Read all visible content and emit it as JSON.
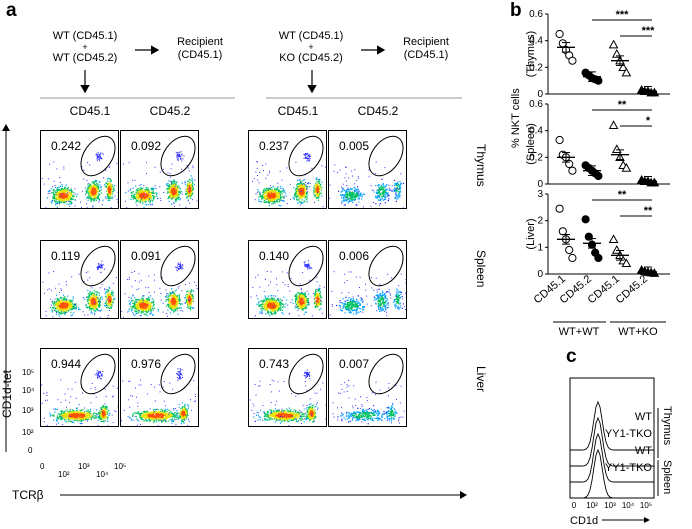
{
  "figure": {
    "panel_a": "a",
    "panel_b": "b",
    "panel_c": "c"
  },
  "schematic": {
    "left": {
      "donor1": "WT (CD45.1)",
      "plus": "+",
      "donor2": "WT (CD45.2)",
      "recipient_l1": "Recipient",
      "recipient_l2": "(CD45.1)"
    },
    "right": {
      "donor1": "WT (CD45.1)",
      "plus": "+",
      "donor2": "KO (CD45.2)",
      "recipient_l1": "Recipient",
      "recipient_l2": "(CD45.1)"
    }
  },
  "columns": [
    "CD45.1",
    "CD45.2",
    "CD45.1",
    "CD45.2"
  ],
  "rows": [
    "Thymus",
    "Spleen",
    "Liver"
  ],
  "percentages": [
    [
      "0.242",
      "0.092",
      "0.237",
      "0.005"
    ],
    [
      "0.119",
      "0.091",
      "0.140",
      "0.006"
    ],
    [
      "0.944",
      "0.976",
      "0.743",
      "0.007"
    ]
  ],
  "axes_a": {
    "ylabel": "CD1d-tet",
    "xlabel": "TCRβ",
    "yticks": [
      "10⁵",
      "10⁴",
      "10³",
      "10²",
      "0"
    ],
    "xticks": [
      "0",
      "10²",
      "10³",
      "10⁴",
      "10⁵"
    ]
  },
  "chart_data": [
    {
      "type": "scatter",
      "title": "(Thymus)",
      "ylabel": "(Thymus)",
      "ylim": [
        0,
        0.6
      ],
      "yticks": [
        0,
        0.2,
        0.4,
        0.6
      ],
      "categories": [
        "CD45.1",
        "CD45.2",
        "CD45.1",
        "CD45.2"
      ],
      "means": [
        0.35,
        0.13,
        0.25,
        0.02
      ],
      "points": [
        [
          0.45,
          0.38,
          0.33,
          0.29,
          0.25
        ],
        [
          0.16,
          0.14,
          0.12,
          0.11,
          0.1
        ],
        [
          0.37,
          0.3,
          0.25,
          0.2,
          0.16
        ],
        [
          0.03,
          0.02,
          0.02,
          0.01,
          0.01
        ]
      ],
      "significance": [
        {
          "label": "***",
          "from": 1,
          "to": 3
        },
        {
          "label": "***",
          "from": 2,
          "to": 3
        }
      ]
    },
    {
      "type": "scatter",
      "title": "(Spleen)",
      "ylabel": "% NKT cells\n(Spleen)",
      "ylim": [
        0,
        0.6
      ],
      "yticks": [
        0,
        0.2,
        0.4,
        0.6
      ],
      "categories": [
        "CD45.1",
        "CD45.2",
        "CD45.1",
        "CD45.2"
      ],
      "means": [
        0.2,
        0.1,
        0.22,
        0.02
      ],
      "points": [
        [
          0.33,
          0.22,
          0.2,
          0.15,
          0.1
        ],
        [
          0.14,
          0.12,
          0.1,
          0.08,
          0.06
        ],
        [
          0.44,
          0.26,
          0.2,
          0.14,
          0.12
        ],
        [
          0.03,
          0.02,
          0.02,
          0.01,
          0.01
        ]
      ],
      "significance": [
        {
          "label": "**",
          "from": 1,
          "to": 3
        },
        {
          "label": "*",
          "from": 2,
          "to": 3
        }
      ]
    },
    {
      "type": "scatter",
      "title": "(Liver)",
      "ylabel": "(Liver)",
      "ylim": [
        0,
        3
      ],
      "yticks": [
        0,
        1,
        2,
        3
      ],
      "categories": [
        "CD45.1",
        "CD45.2",
        "CD45.1",
        "CD45.2"
      ],
      "means": [
        1.3,
        1.15,
        0.7,
        0.08
      ],
      "points": [
        [
          2.45,
          1.6,
          1.3,
          0.9,
          0.6
        ],
        [
          2.05,
          1.4,
          1.1,
          0.8,
          0.6
        ],
        [
          1.3,
          0.9,
          0.7,
          0.5,
          0.4
        ],
        [
          0.15,
          0.1,
          0.07,
          0.05,
          0.03
        ]
      ],
      "significance": [
        {
          "label": "**",
          "from": 1,
          "to": 3
        },
        {
          "label": "**",
          "from": 2,
          "to": 3
        }
      ]
    }
  ],
  "panel_b_labels": {
    "ylabel": "% NKT cells",
    "xcats": [
      "CD45.1",
      "CD45.2",
      "CD45.1",
      "CD45.2"
    ],
    "group1": "WT+WT",
    "group2": "WT+KO"
  },
  "panel_c": {
    "labels": [
      "WT",
      "YY1-TKO",
      "WT",
      "YY1-TKO"
    ],
    "tissue1": "Thymus",
    "tissue2": "Spleen",
    "xlabel": "CD1d",
    "xticks": [
      "0",
      "10²",
      "10³",
      "10⁴",
      "10⁵"
    ]
  }
}
